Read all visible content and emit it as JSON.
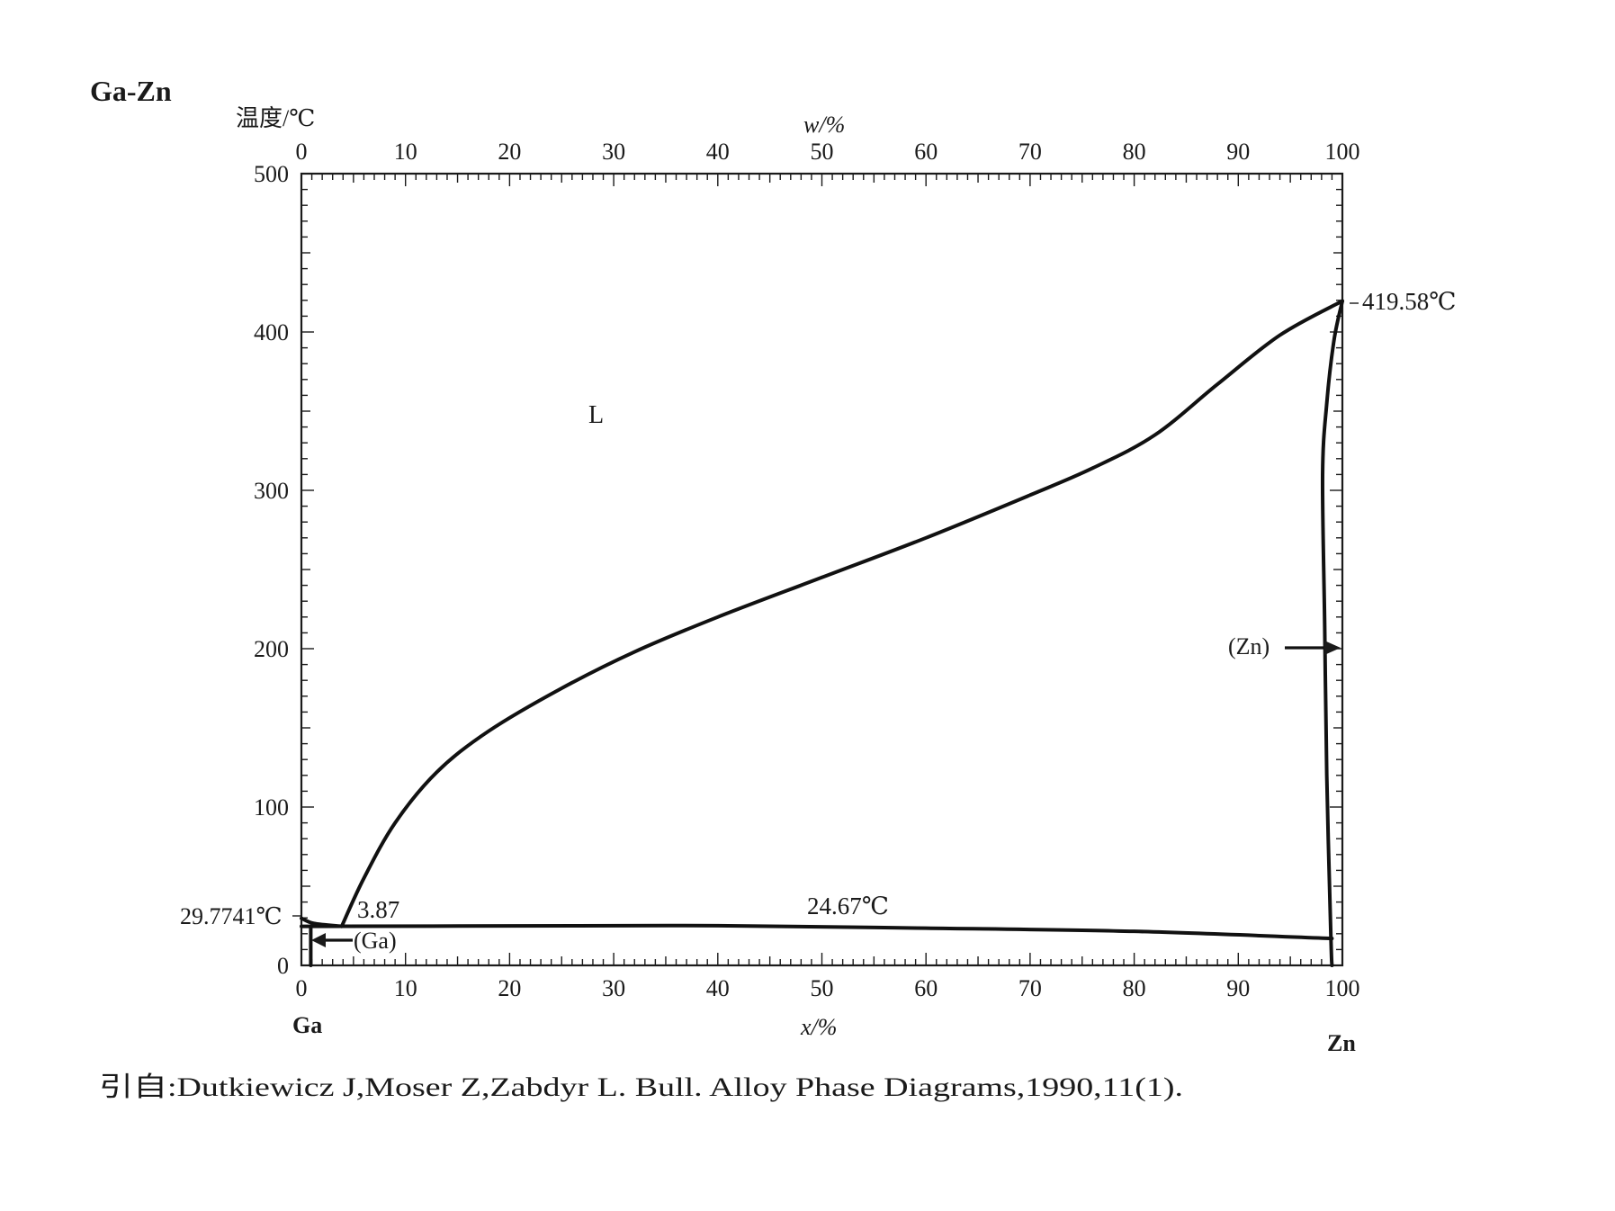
{
  "chart_data": {
    "type": "phase-diagram",
    "title": "Ga-Zn",
    "ylabel": "温度/℃",
    "xlabel_bottom": "x/%",
    "xlabel_top": "w/%",
    "ylim": [
      0,
      500
    ],
    "xlim": [
      0,
      100
    ],
    "y_ticks": [
      "0",
      "100",
      "200",
      "300",
      "400",
      "500"
    ],
    "x_ticks_bottom": [
      "0",
      "10",
      "20",
      "30",
      "40",
      "50",
      "60",
      "70",
      "80",
      "90",
      "100"
    ],
    "x_ticks_top": [
      "0",
      "10",
      "20",
      "30",
      "40",
      "50",
      "60",
      "70",
      "80",
      "90",
      "100"
    ],
    "element_left": "Ga",
    "element_right": "Zn",
    "labels": {
      "liquid": "L",
      "ga_phase": "(Ga)",
      "zn_phase": "(Zn)",
      "ga_melting": "29.7741℃",
      "zn_melting": "419.58℃",
      "eutectic_temp": "24.67℃",
      "eutectic_comp": "3.87"
    },
    "series": [
      {
        "name": "liquidus",
        "points": [
          [
            3.87,
            24.67
          ],
          [
            6,
            55
          ],
          [
            9,
            90
          ],
          [
            13,
            122
          ],
          [
            18,
            148
          ],
          [
            25,
            175
          ],
          [
            32,
            198
          ],
          [
            40,
            220
          ],
          [
            50,
            245
          ],
          [
            60,
            270
          ],
          [
            70,
            297
          ],
          [
            76,
            314
          ],
          [
            82,
            335
          ],
          [
            88,
            367
          ],
          [
            94,
            398
          ],
          [
            100,
            419.58
          ]
        ]
      },
      {
        "name": "eutectic-line",
        "points": [
          [
            0,
            24.67
          ],
          [
            20,
            24.9
          ],
          [
            40,
            25.1
          ],
          [
            60,
            23.5
          ],
          [
            80,
            21.5
          ],
          [
            99,
            17
          ]
        ]
      },
      {
        "name": "zn-solvus",
        "points": [
          [
            99,
            0
          ],
          [
            98.9,
            17
          ],
          [
            98.5,
            120
          ],
          [
            98.3,
            215
          ],
          [
            98.1,
            310
          ],
          [
            98.5,
            355
          ],
          [
            99.2,
            395
          ],
          [
            100,
            419.58
          ]
        ]
      },
      {
        "name": "ga-solidus",
        "points": [
          [
            0,
            29.7741
          ],
          [
            1.2,
            26.5
          ],
          [
            3.87,
            24.67
          ]
        ]
      },
      {
        "name": "ga-solvus",
        "points": [
          [
            0.9,
            24.67
          ],
          [
            0.9,
            0
          ]
        ]
      }
    ]
  },
  "citation": "引自:Dutkiewicz J,Moser Z,Zabdyr L. Bull. Alloy Phase Diagrams,1990,11(1)."
}
